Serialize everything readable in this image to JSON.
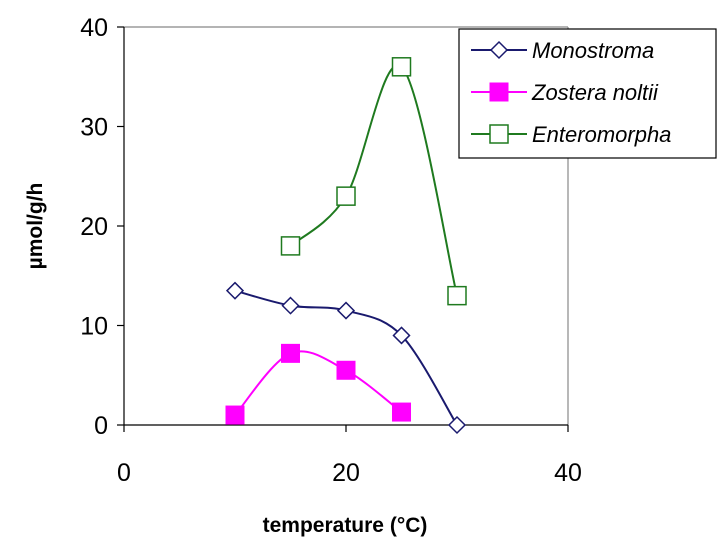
{
  "chart_data": {
    "type": "line",
    "xlabel": "temperature (°C)",
    "ylabel": "µmol/g/h",
    "xlim": [
      0,
      40
    ],
    "ylim": [
      0,
      40
    ],
    "x_ticks": [
      0,
      20,
      40
    ],
    "y_ticks": [
      0,
      10,
      20,
      30,
      40
    ],
    "grid": false,
    "smooth": true,
    "legend": "top-right",
    "series": [
      {
        "name": "Monostroma",
        "color": "#1a1a6e",
        "marker": "diamond-open",
        "x": [
          10,
          15,
          20,
          25,
          30
        ],
        "y": [
          13.5,
          12,
          11.5,
          9,
          0
        ]
      },
      {
        "name": "Zostera noltii",
        "color": "#ff00ff",
        "marker": "square-filled",
        "x": [
          10,
          15,
          20,
          25
        ],
        "y": [
          1,
          7.2,
          5.5,
          1.3
        ]
      },
      {
        "name": "Enteromorpha",
        "color": "#1f7a1f",
        "marker": "square-open",
        "x": [
          15,
          20,
          25,
          30
        ],
        "y": [
          18,
          23,
          36,
          13
        ]
      }
    ]
  }
}
